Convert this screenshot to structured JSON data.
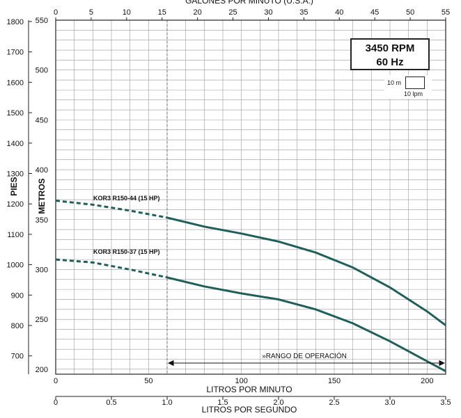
{
  "chart_data": {
    "type": "line",
    "rpm_label": "3450 RPM",
    "hz_label": "60 Hz",
    "scale_legend": {
      "height": "10 m",
      "flow": "10 lpm"
    },
    "axes": {
      "x_bottom": {
        "label": "LITROS POR MINUTO",
        "range": [
          0,
          210
        ],
        "ticks": [
          "0",
          "50",
          "100",
          "150",
          "200"
        ],
        "tick_values": [
          0,
          50,
          100,
          150,
          200
        ]
      },
      "x_secondary": {
        "label": "LITROS POR SEGUNDO",
        "range": [
          0,
          3.5
        ],
        "ticks": [
          "0",
          "0.5",
          "1.0",
          "1.5",
          "2.0",
          "2.5",
          "3.0",
          "3.5"
        ],
        "tick_values": [
          0,
          0.5,
          1.0,
          1.5,
          2.0,
          2.5,
          3.0,
          3.5
        ]
      },
      "x_top": {
        "label": "GALONES POR MINUTO (U.S.A.)",
        "range": [
          0,
          55
        ],
        "ticks": [
          "0",
          "5",
          "10",
          "15",
          "20",
          "25",
          "30",
          "35",
          "40",
          "45",
          "50",
          "55"
        ],
        "tick_values": [
          0,
          5,
          10,
          15,
          20,
          25,
          30,
          35,
          40,
          45,
          50,
          55
        ]
      },
      "y_metros": {
        "label": "METROS",
        "range": [
          195,
          550
        ],
        "ticks": [
          "200",
          "250",
          "300",
          "350",
          "400",
          "450",
          "500",
          "550"
        ],
        "tick_values": [
          200,
          250,
          300,
          350,
          400,
          450,
          500,
          550
        ]
      },
      "y_pies": {
        "label": "PIES",
        "ticks": [
          "700",
          "800",
          "900",
          "1000",
          "1100",
          "1200",
          "1300",
          "1400",
          "1500",
          "1600",
          "1700",
          "1800"
        ],
        "tick_values": [
          700,
          800,
          900,
          1000,
          1100,
          1200,
          1300,
          1400,
          1500,
          1600,
          1700,
          1800
        ]
      }
    },
    "operating_range": {
      "label": "»RANGO DE OPERACIÓN",
      "x_start": 60,
      "x_end": 210
    },
    "grid": true,
    "series": [
      {
        "name": "KOR3 R150-44 (15 HP)",
        "color": "#1f5f5a",
        "x": [
          0,
          20,
          40,
          60,
          80,
          100,
          120,
          140,
          160,
          180,
          200,
          210
        ],
        "y": [
          369,
          365,
          359,
          352,
          343,
          336,
          328,
          317,
          302,
          282,
          258,
          244
        ],
        "dashed_until_x": 60
      },
      {
        "name": "KOR3 R150-37 (15 HP)",
        "color": "#1f5f5a",
        "x": [
          0,
          20,
          40,
          60,
          80,
          100,
          120,
          140,
          160,
          180,
          200,
          210
        ],
        "y": [
          310,
          307,
          300,
          292,
          283,
          276,
          270,
          260,
          246,
          228,
          208,
          198
        ],
        "dashed_until_x": 60
      }
    ]
  }
}
